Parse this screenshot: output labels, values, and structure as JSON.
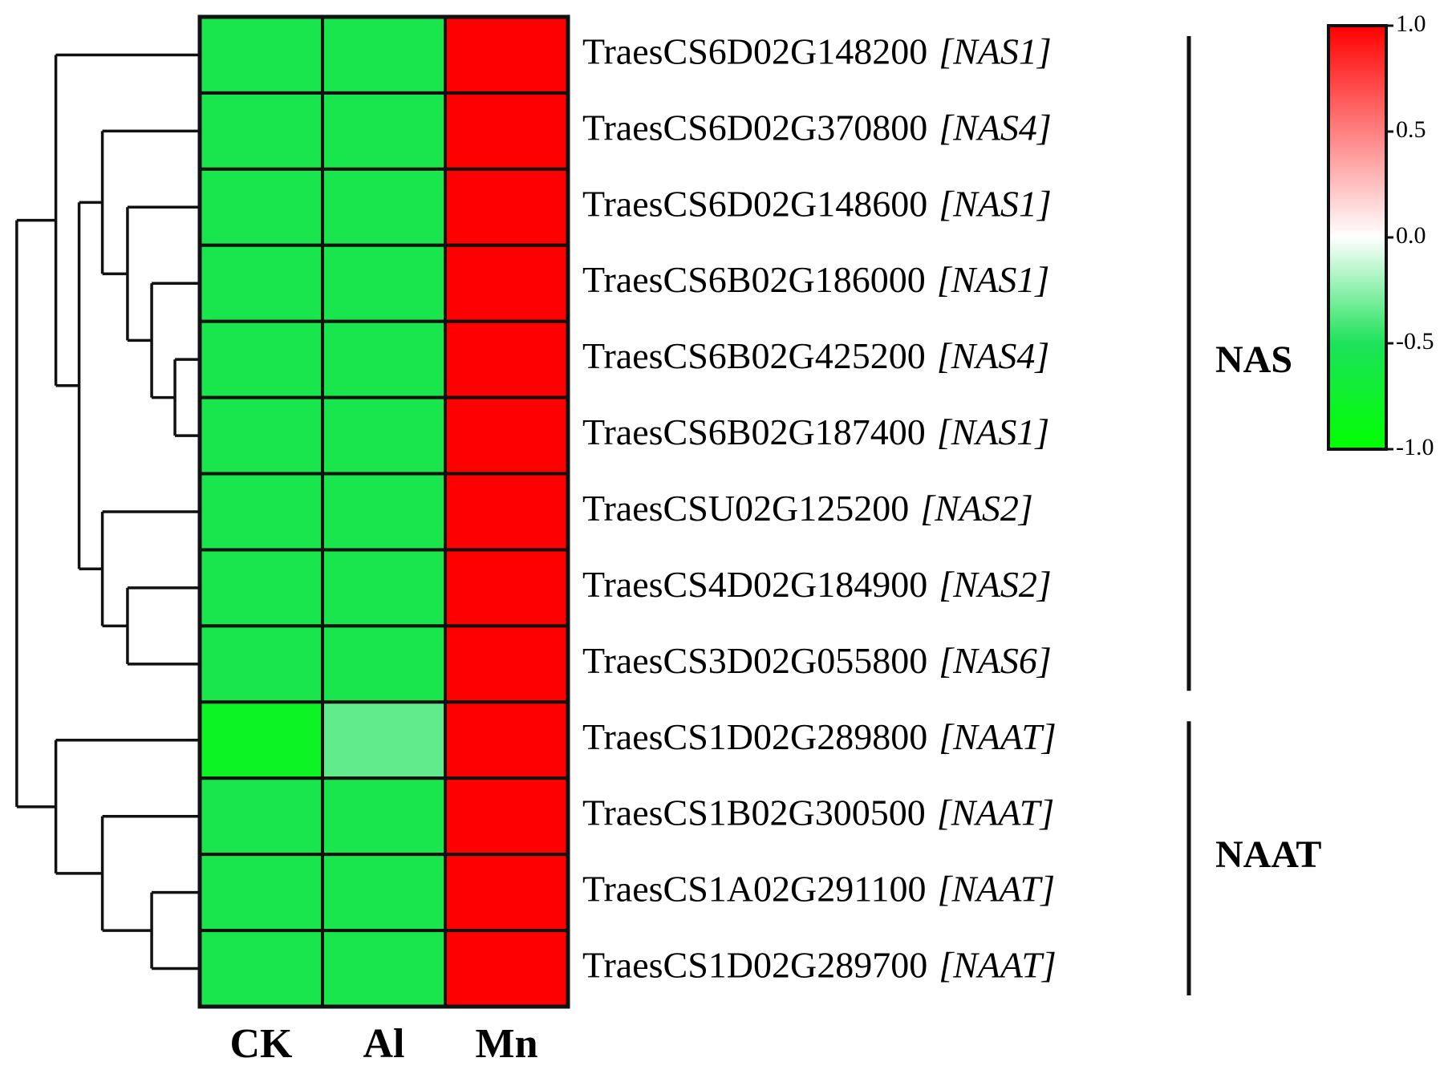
{
  "chart_data": {
    "type": "heatmap",
    "categories": [
      "CK",
      "Al",
      "Mn"
    ],
    "rows": [
      {
        "id": "TraesCS6D02G148200",
        "gene": "[NAS1]"
      },
      {
        "id": "TraesCS6D02G370800",
        "gene": "[NAS4]"
      },
      {
        "id": "TraesCS6D02G148600",
        "gene": "[NAS1]"
      },
      {
        "id": "TraesCS6B02G186000",
        "gene": "[NAS1]"
      },
      {
        "id": "TraesCS6B02G425200",
        "gene": "[NAS4]"
      },
      {
        "id": "TraesCS6B02G187400",
        "gene": "[NAS1]"
      },
      {
        "id": "TraesCSU02G125200",
        "gene": "[NAS2]"
      },
      {
        "id": "TraesCS4D02G184900",
        "gene": "[NAS2]"
      },
      {
        "id": "TraesCS3D02G055800",
        "gene": "[NAS6]"
      },
      {
        "id": "TraesCS1D02G289800",
        "gene": "[NAAT]"
      },
      {
        "id": "TraesCS1B02G300500",
        "gene": "[NAAT]"
      },
      {
        "id": "TraesCS1A02G291100",
        "gene": "[NAAT]"
      },
      {
        "id": "TraesCS1D02G289700",
        "gene": "[NAAT]"
      }
    ],
    "values": [
      [
        -0.577,
        -0.577,
        1.155
      ],
      [
        -0.577,
        -0.577,
        1.155
      ],
      [
        -0.577,
        -0.577,
        1.155
      ],
      [
        -0.577,
        -0.577,
        1.155
      ],
      [
        -0.577,
        -0.577,
        1.155
      ],
      [
        -0.577,
        -0.577,
        1.155
      ],
      [
        -0.577,
        -0.577,
        1.155
      ],
      [
        -0.577,
        -0.577,
        1.155
      ],
      [
        -0.577,
        -0.577,
        1.155
      ],
      [
        -0.8,
        -0.35,
        1.15
      ],
      [
        -0.577,
        -0.577,
        1.155
      ],
      [
        -0.577,
        -0.577,
        1.155
      ],
      [
        -0.577,
        -0.577,
        1.155
      ]
    ],
    "groups": [
      {
        "name": "NAS",
        "size": 9
      },
      {
        "name": "NAAT",
        "size": 4
      }
    ],
    "clim": [
      -1,
      1
    ],
    "cticks": [
      {
        "value": 1,
        "label": "1.0"
      },
      {
        "value": 0.5,
        "label": "0.5"
      },
      {
        "value": 0,
        "label": "0.0"
      },
      {
        "value": -0.5,
        "label": "-0.5"
      },
      {
        "value": -1,
        "label": "-1.0"
      }
    ],
    "colors": [
      "#ff0000",
      "#ff8080",
      "#ffffff",
      "#1de25a",
      "#00ff00"
    ]
  }
}
